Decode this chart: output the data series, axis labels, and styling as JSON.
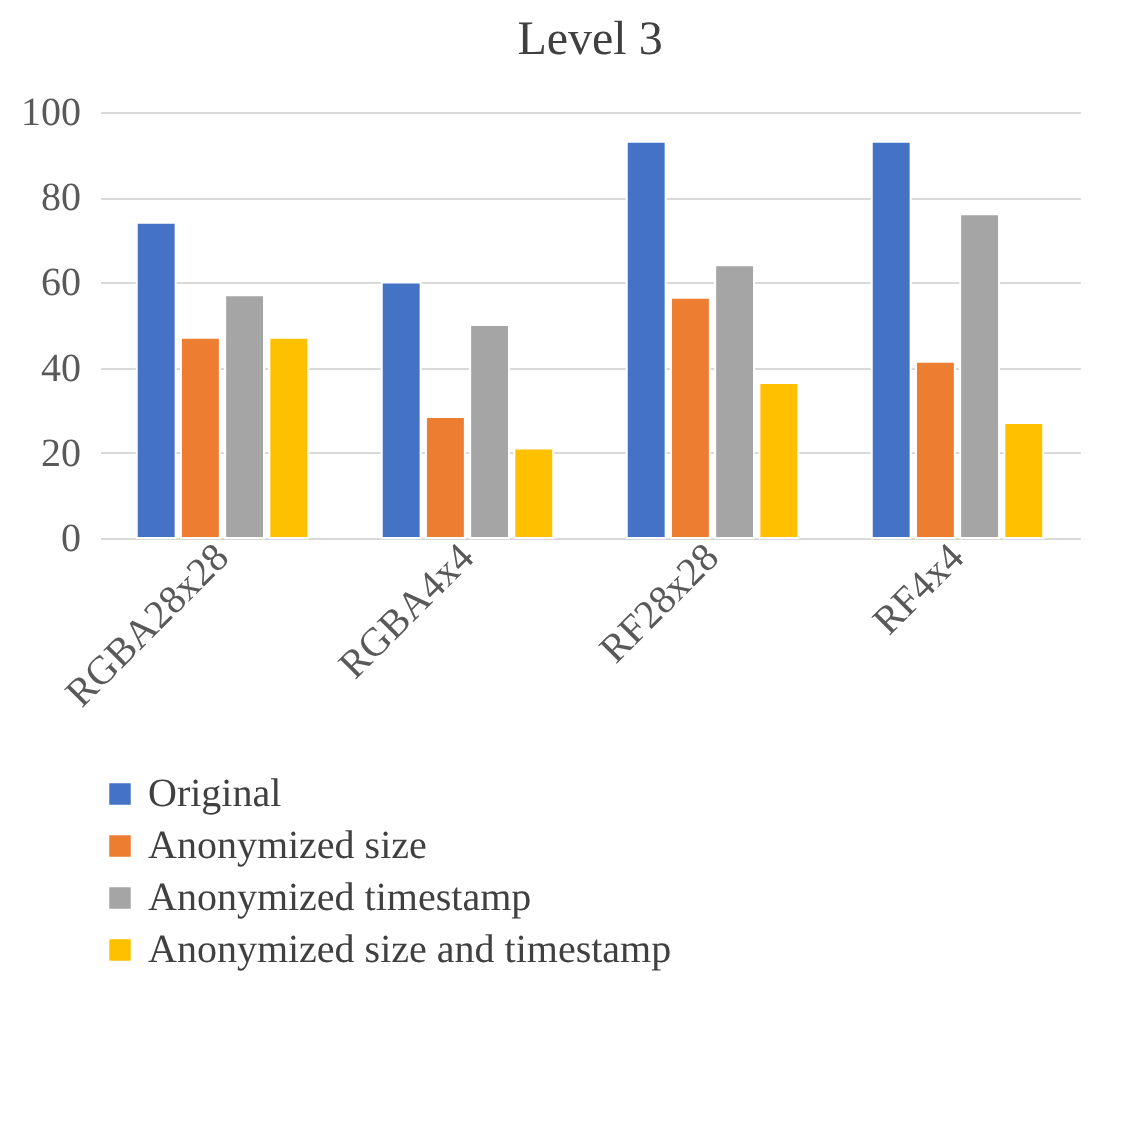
{
  "chart_data": {
    "type": "bar",
    "title": "Level 3",
    "categories": [
      "RGBA28x28",
      "RGBA4x4",
      "RF28x28",
      "RF4x4"
    ],
    "series": [
      {
        "name": "Original",
        "color": "#4472c4",
        "values": [
          74,
          60,
          93,
          93
        ]
      },
      {
        "name": "Anonymized size",
        "color": "#ed7d31",
        "values": [
          47,
          28.4,
          56.4,
          41.4
        ]
      },
      {
        "name": "Anonymized timestamp",
        "color": "#a5a5a5",
        "values": [
          57,
          50,
          64,
          76
        ]
      },
      {
        "name": "Anonymized size and timestamp",
        "color": "#ffc000",
        "values": [
          47,
          21,
          36.4,
          27
        ]
      }
    ],
    "ylim": [
      0,
      100
    ],
    "yticks": [
      0,
      20,
      40,
      60,
      80,
      100
    ],
    "grid": "y",
    "legend": "bottom"
  }
}
